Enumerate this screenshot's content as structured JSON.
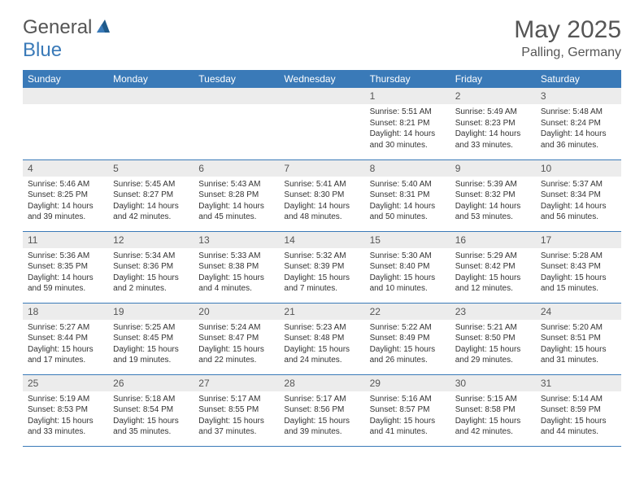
{
  "brand": {
    "part1": "General",
    "part2": "Blue"
  },
  "title": "May 2025",
  "location": "Palling, Germany",
  "colors": {
    "header_bg": "#3a7ab8",
    "header_text": "#ffffff",
    "daynum_bg": "#ececec",
    "text": "#333333",
    "title_text": "#555555",
    "border": "#3a7ab8",
    "background": "#ffffff"
  },
  "fonts": {
    "title_size": 30,
    "location_size": 16,
    "dayhead_size": 12,
    "daynum_size": 12,
    "body_size": 10
  },
  "dayHeaders": [
    "Sunday",
    "Monday",
    "Tuesday",
    "Wednesday",
    "Thursday",
    "Friday",
    "Saturday"
  ],
  "weeks": [
    [
      null,
      null,
      null,
      null,
      {
        "n": "1",
        "sr": "Sunrise: 5:51 AM",
        "ss": "Sunset: 8:21 PM",
        "dl": "Daylight: 14 hours and 30 minutes."
      },
      {
        "n": "2",
        "sr": "Sunrise: 5:49 AM",
        "ss": "Sunset: 8:23 PM",
        "dl": "Daylight: 14 hours and 33 minutes."
      },
      {
        "n": "3",
        "sr": "Sunrise: 5:48 AM",
        "ss": "Sunset: 8:24 PM",
        "dl": "Daylight: 14 hours and 36 minutes."
      }
    ],
    [
      {
        "n": "4",
        "sr": "Sunrise: 5:46 AM",
        "ss": "Sunset: 8:25 PM",
        "dl": "Daylight: 14 hours and 39 minutes."
      },
      {
        "n": "5",
        "sr": "Sunrise: 5:45 AM",
        "ss": "Sunset: 8:27 PM",
        "dl": "Daylight: 14 hours and 42 minutes."
      },
      {
        "n": "6",
        "sr": "Sunrise: 5:43 AM",
        "ss": "Sunset: 8:28 PM",
        "dl": "Daylight: 14 hours and 45 minutes."
      },
      {
        "n": "7",
        "sr": "Sunrise: 5:41 AM",
        "ss": "Sunset: 8:30 PM",
        "dl": "Daylight: 14 hours and 48 minutes."
      },
      {
        "n": "8",
        "sr": "Sunrise: 5:40 AM",
        "ss": "Sunset: 8:31 PM",
        "dl": "Daylight: 14 hours and 50 minutes."
      },
      {
        "n": "9",
        "sr": "Sunrise: 5:39 AM",
        "ss": "Sunset: 8:32 PM",
        "dl": "Daylight: 14 hours and 53 minutes."
      },
      {
        "n": "10",
        "sr": "Sunrise: 5:37 AM",
        "ss": "Sunset: 8:34 PM",
        "dl": "Daylight: 14 hours and 56 minutes."
      }
    ],
    [
      {
        "n": "11",
        "sr": "Sunrise: 5:36 AM",
        "ss": "Sunset: 8:35 PM",
        "dl": "Daylight: 14 hours and 59 minutes."
      },
      {
        "n": "12",
        "sr": "Sunrise: 5:34 AM",
        "ss": "Sunset: 8:36 PM",
        "dl": "Daylight: 15 hours and 2 minutes."
      },
      {
        "n": "13",
        "sr": "Sunrise: 5:33 AM",
        "ss": "Sunset: 8:38 PM",
        "dl": "Daylight: 15 hours and 4 minutes."
      },
      {
        "n": "14",
        "sr": "Sunrise: 5:32 AM",
        "ss": "Sunset: 8:39 PM",
        "dl": "Daylight: 15 hours and 7 minutes."
      },
      {
        "n": "15",
        "sr": "Sunrise: 5:30 AM",
        "ss": "Sunset: 8:40 PM",
        "dl": "Daylight: 15 hours and 10 minutes."
      },
      {
        "n": "16",
        "sr": "Sunrise: 5:29 AM",
        "ss": "Sunset: 8:42 PM",
        "dl": "Daylight: 15 hours and 12 minutes."
      },
      {
        "n": "17",
        "sr": "Sunrise: 5:28 AM",
        "ss": "Sunset: 8:43 PM",
        "dl": "Daylight: 15 hours and 15 minutes."
      }
    ],
    [
      {
        "n": "18",
        "sr": "Sunrise: 5:27 AM",
        "ss": "Sunset: 8:44 PM",
        "dl": "Daylight: 15 hours and 17 minutes."
      },
      {
        "n": "19",
        "sr": "Sunrise: 5:25 AM",
        "ss": "Sunset: 8:45 PM",
        "dl": "Daylight: 15 hours and 19 minutes."
      },
      {
        "n": "20",
        "sr": "Sunrise: 5:24 AM",
        "ss": "Sunset: 8:47 PM",
        "dl": "Daylight: 15 hours and 22 minutes."
      },
      {
        "n": "21",
        "sr": "Sunrise: 5:23 AM",
        "ss": "Sunset: 8:48 PM",
        "dl": "Daylight: 15 hours and 24 minutes."
      },
      {
        "n": "22",
        "sr": "Sunrise: 5:22 AM",
        "ss": "Sunset: 8:49 PM",
        "dl": "Daylight: 15 hours and 26 minutes."
      },
      {
        "n": "23",
        "sr": "Sunrise: 5:21 AM",
        "ss": "Sunset: 8:50 PM",
        "dl": "Daylight: 15 hours and 29 minutes."
      },
      {
        "n": "24",
        "sr": "Sunrise: 5:20 AM",
        "ss": "Sunset: 8:51 PM",
        "dl": "Daylight: 15 hours and 31 minutes."
      }
    ],
    [
      {
        "n": "25",
        "sr": "Sunrise: 5:19 AM",
        "ss": "Sunset: 8:53 PM",
        "dl": "Daylight: 15 hours and 33 minutes."
      },
      {
        "n": "26",
        "sr": "Sunrise: 5:18 AM",
        "ss": "Sunset: 8:54 PM",
        "dl": "Daylight: 15 hours and 35 minutes."
      },
      {
        "n": "27",
        "sr": "Sunrise: 5:17 AM",
        "ss": "Sunset: 8:55 PM",
        "dl": "Daylight: 15 hours and 37 minutes."
      },
      {
        "n": "28",
        "sr": "Sunrise: 5:17 AM",
        "ss": "Sunset: 8:56 PM",
        "dl": "Daylight: 15 hours and 39 minutes."
      },
      {
        "n": "29",
        "sr": "Sunrise: 5:16 AM",
        "ss": "Sunset: 8:57 PM",
        "dl": "Daylight: 15 hours and 41 minutes."
      },
      {
        "n": "30",
        "sr": "Sunrise: 5:15 AM",
        "ss": "Sunset: 8:58 PM",
        "dl": "Daylight: 15 hours and 42 minutes."
      },
      {
        "n": "31",
        "sr": "Sunrise: 5:14 AM",
        "ss": "Sunset: 8:59 PM",
        "dl": "Daylight: 15 hours and 44 minutes."
      }
    ]
  ]
}
